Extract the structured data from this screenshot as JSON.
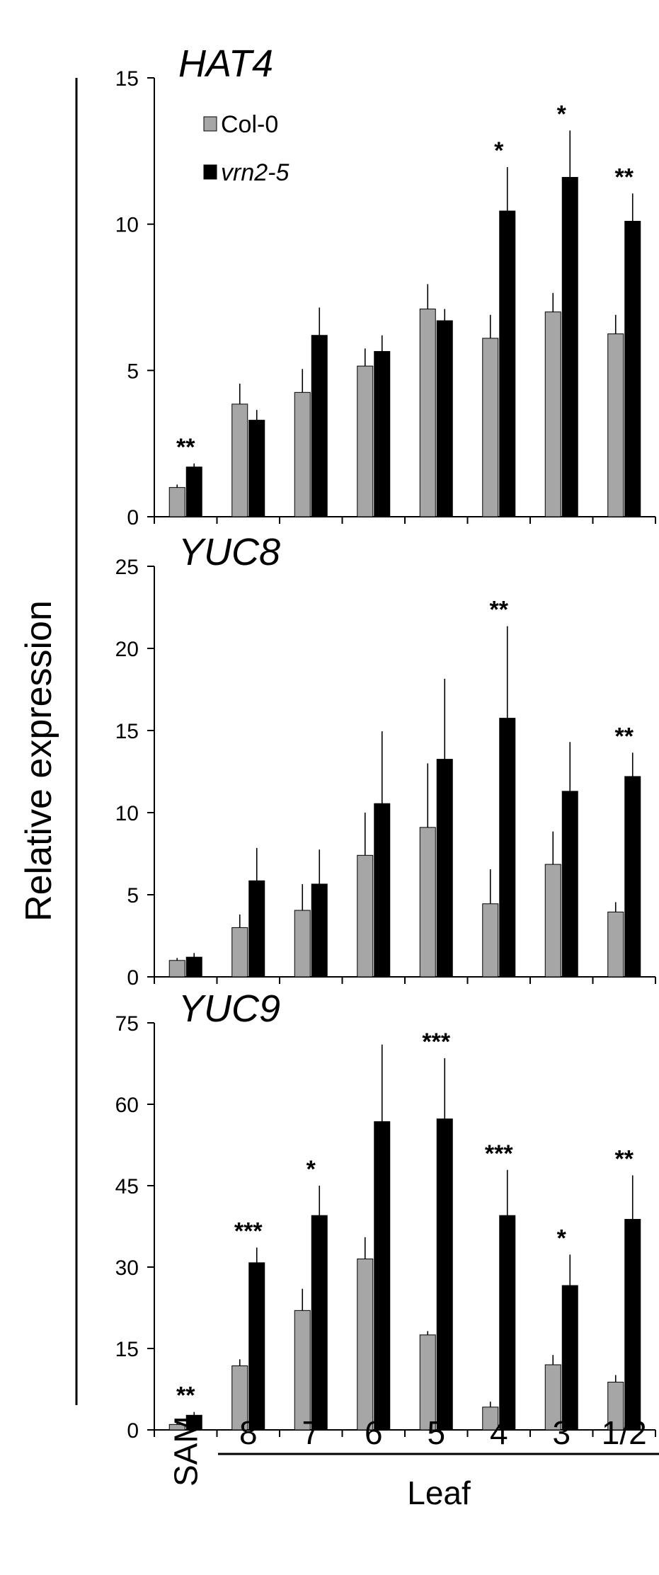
{
  "chart_data": [
    {
      "type": "bar",
      "title": "HAT4",
      "ylim": [
        0,
        15
      ],
      "yticks": [
        0,
        5,
        10,
        15
      ],
      "categories": [
        "SAM",
        "8",
        "7",
        "6",
        "5",
        "4",
        "3",
        "1/2"
      ],
      "series": [
        {
          "name": "Col-0",
          "color": "#a6a6a6",
          "values": [
            1.0,
            3.85,
            4.25,
            5.15,
            7.1,
            6.1,
            7.0,
            6.25
          ],
          "errors": [
            0.1,
            0.7,
            0.8,
            0.6,
            0.85,
            0.8,
            0.65,
            0.65
          ]
        },
        {
          "name": "vrn2-5",
          "color": "#000000",
          "values": [
            1.7,
            3.3,
            6.2,
            5.65,
            6.7,
            10.45,
            11.6,
            10.1
          ],
          "errors": [
            0.12,
            0.35,
            0.95,
            0.55,
            0.4,
            1.5,
            1.6,
            0.95
          ]
        }
      ],
      "significance": [
        "**",
        "",
        "",
        "",
        "",
        "*",
        "*",
        "**"
      ],
      "legend": [
        "Col-0",
        "vrn2-5"
      ],
      "legend_position": "top-left"
    },
    {
      "type": "bar",
      "title": "YUC8",
      "ylim": [
        0,
        25
      ],
      "yticks": [
        0,
        5,
        10,
        15,
        20,
        25
      ],
      "categories": [
        "SAM",
        "8",
        "7",
        "6",
        "5",
        "4",
        "3",
        "1/2"
      ],
      "series": [
        {
          "name": "Col-0",
          "color": "#a6a6a6",
          "values": [
            1.0,
            3.0,
            4.05,
            7.4,
            9.1,
            4.45,
            6.85,
            3.95
          ],
          "errors": [
            0.15,
            0.8,
            1.6,
            2.6,
            3.9,
            2.1,
            2.0,
            0.6
          ]
        },
        {
          "name": "vrn2-5",
          "color": "#000000",
          "values": [
            1.2,
            5.85,
            5.65,
            10.55,
            13.25,
            15.75,
            11.3,
            12.2
          ],
          "errors": [
            0.25,
            2.0,
            2.1,
            4.4,
            4.9,
            5.6,
            3.0,
            1.45
          ]
        }
      ],
      "significance": [
        "",
        "",
        "",
        "",
        "",
        "**",
        "",
        "**"
      ]
    },
    {
      "type": "bar",
      "title": "YUC9",
      "ylim": [
        0,
        75
      ],
      "yticks": [
        0,
        15,
        30,
        45,
        60,
        75
      ],
      "categories": [
        "SAM",
        "8",
        "7",
        "6",
        "5",
        "4",
        "3",
        "1/2"
      ],
      "series": [
        {
          "name": "Col-0",
          "color": "#a6a6a6",
          "values": [
            1.0,
            11.8,
            22.0,
            31.5,
            17.5,
            4.2,
            12.0,
            8.8
          ],
          "errors": [
            0.3,
            1.2,
            4.0,
            4.0,
            0.7,
            1.0,
            1.8,
            1.3
          ]
        },
        {
          "name": "vrn2-5",
          "color": "#000000",
          "values": [
            2.7,
            30.8,
            39.5,
            56.8,
            57.3,
            39.5,
            26.6,
            38.8
          ],
          "errors": [
            0.6,
            2.8,
            5.5,
            14.2,
            11.2,
            8.4,
            5.7,
            8.1
          ]
        }
      ],
      "significance": [
        "**",
        "***",
        "*",
        "",
        "***",
        "***",
        "*",
        "**"
      ]
    }
  ],
  "ylabel": "Relative expression",
  "xlabel": "Leaf"
}
